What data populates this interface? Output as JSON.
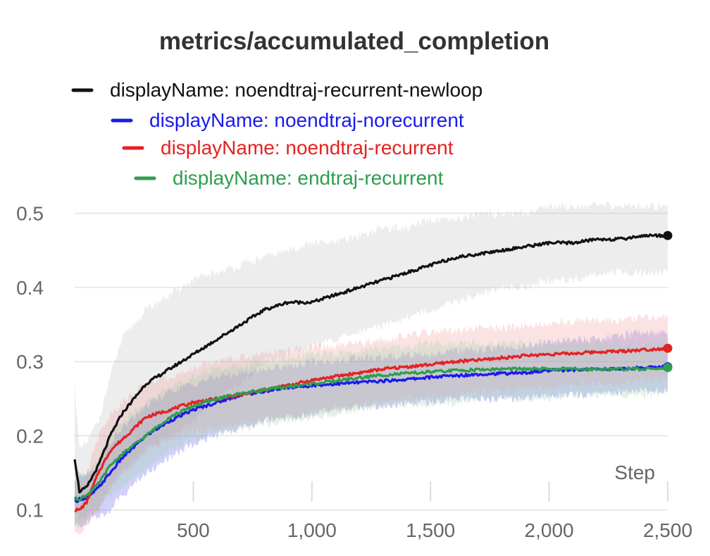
{
  "chart_data": {
    "type": "line",
    "title": "metrics/accumulated_completion",
    "xlabel": "Step",
    "ylabel": "",
    "xlim": [
      0,
      2500
    ],
    "ylim": [
      0.075,
      0.55
    ],
    "x_ticks": [
      500,
      1000,
      1500,
      2000,
      2500
    ],
    "x_tick_labels": [
      "500",
      "1,000",
      "1,500",
      "2,000",
      "2,500"
    ],
    "y_ticks": [
      0.1,
      0.2,
      0.3,
      0.4,
      0.5
    ],
    "y_tick_labels": [
      "0.1",
      "0.2",
      "0.3",
      "0.4",
      "0.5"
    ],
    "grid": true,
    "legend_position": "top",
    "series": [
      {
        "name": "displayName: noendtraj-recurrent-newloop",
        "color": "#111111",
        "band_color": "#bdbdbd",
        "x": [
          0,
          20,
          50,
          100,
          150,
          200,
          300,
          400,
          500,
          600,
          700,
          800,
          900,
          1000,
          1100,
          1200,
          1300,
          1400,
          1500,
          1600,
          1700,
          1800,
          1900,
          2000,
          2100,
          2200,
          2300,
          2400,
          2500
        ],
        "y": [
          0.17,
          0.125,
          0.13,
          0.16,
          0.2,
          0.23,
          0.27,
          0.29,
          0.31,
          0.33,
          0.35,
          0.37,
          0.38,
          0.38,
          0.39,
          0.4,
          0.41,
          0.42,
          0.43,
          0.44,
          0.445,
          0.45,
          0.455,
          0.46,
          0.46,
          0.465,
          0.465,
          0.47,
          0.47
        ],
        "lower": [
          0.1,
          0.09,
          0.09,
          0.1,
          0.13,
          0.15,
          0.18,
          0.2,
          0.22,
          0.25,
          0.27,
          0.3,
          0.31,
          0.32,
          0.33,
          0.34,
          0.35,
          0.36,
          0.37,
          0.38,
          0.39,
          0.4,
          0.4,
          0.41,
          0.41,
          0.42,
          0.42,
          0.42,
          0.42
        ],
        "upper": [
          0.27,
          0.18,
          0.19,
          0.22,
          0.28,
          0.33,
          0.37,
          0.39,
          0.41,
          0.42,
          0.43,
          0.44,
          0.45,
          0.46,
          0.46,
          0.47,
          0.48,
          0.48,
          0.49,
          0.49,
          0.5,
          0.5,
          0.5,
          0.51,
          0.51,
          0.51,
          0.51,
          0.51,
          0.51
        ]
      },
      {
        "name": "displayName: noendtraj-norecurrent",
        "color": "#1a1aee",
        "band_color": "#5a5aee",
        "x": [
          0,
          20,
          50,
          100,
          150,
          200,
          300,
          400,
          500,
          600,
          700,
          800,
          900,
          1000,
          1100,
          1200,
          1300,
          1400,
          1500,
          1600,
          1700,
          1800,
          1900,
          2000,
          2100,
          2200,
          2300,
          2400,
          2500
        ],
        "y": [
          0.11,
          0.115,
          0.115,
          0.13,
          0.15,
          0.17,
          0.2,
          0.22,
          0.235,
          0.245,
          0.255,
          0.26,
          0.265,
          0.268,
          0.27,
          0.272,
          0.274,
          0.276,
          0.279,
          0.281,
          0.283,
          0.284,
          0.285,
          0.288,
          0.289,
          0.29,
          0.29,
          0.292,
          0.293
        ],
        "lower": [
          0.08,
          0.08,
          0.085,
          0.09,
          0.1,
          0.12,
          0.15,
          0.17,
          0.19,
          0.2,
          0.21,
          0.22,
          0.225,
          0.23,
          0.235,
          0.24,
          0.24,
          0.245,
          0.245,
          0.25,
          0.25,
          0.25,
          0.25,
          0.255,
          0.255,
          0.255,
          0.26,
          0.26,
          0.26
        ],
        "upper": [
          0.14,
          0.15,
          0.15,
          0.16,
          0.19,
          0.21,
          0.24,
          0.26,
          0.27,
          0.28,
          0.285,
          0.29,
          0.295,
          0.3,
          0.3,
          0.305,
          0.305,
          0.31,
          0.31,
          0.315,
          0.315,
          0.32,
          0.32,
          0.325,
          0.33,
          0.33,
          0.335,
          0.34,
          0.34
        ]
      },
      {
        "name": "displayName: noendtraj-recurrent",
        "color": "#e52222",
        "band_color": "#f09999",
        "x": [
          0,
          20,
          50,
          100,
          150,
          200,
          300,
          400,
          500,
          600,
          700,
          800,
          900,
          1000,
          1100,
          1200,
          1300,
          1400,
          1500,
          1600,
          1700,
          1800,
          1900,
          2000,
          2100,
          2200,
          2300,
          2400,
          2500
        ],
        "y": [
          0.1,
          0.1,
          0.11,
          0.15,
          0.18,
          0.195,
          0.225,
          0.235,
          0.245,
          0.25,
          0.255,
          0.262,
          0.268,
          0.275,
          0.28,
          0.285,
          0.29,
          0.293,
          0.296,
          0.3,
          0.302,
          0.305,
          0.308,
          0.31,
          0.311,
          0.313,
          0.314,
          0.316,
          0.318
        ],
        "lower": [
          0.07,
          0.07,
          0.08,
          0.1,
          0.13,
          0.15,
          0.18,
          0.195,
          0.205,
          0.21,
          0.215,
          0.22,
          0.225,
          0.23,
          0.235,
          0.24,
          0.245,
          0.25,
          0.25,
          0.255,
          0.26,
          0.26,
          0.265,
          0.265,
          0.27,
          0.27,
          0.27,
          0.275,
          0.275
        ],
        "upper": [
          0.14,
          0.14,
          0.15,
          0.2,
          0.23,
          0.245,
          0.27,
          0.28,
          0.29,
          0.3,
          0.305,
          0.31,
          0.315,
          0.32,
          0.32,
          0.325,
          0.33,
          0.335,
          0.34,
          0.34,
          0.345,
          0.345,
          0.35,
          0.35,
          0.355,
          0.355,
          0.355,
          0.36,
          0.36
        ]
      },
      {
        "name": "displayName: endtraj-recurrent",
        "color": "#2e9e4f",
        "band_color": "#9acfa7",
        "x": [
          0,
          20,
          50,
          100,
          150,
          200,
          300,
          400,
          500,
          600,
          700,
          800,
          900,
          1000,
          1100,
          1200,
          1300,
          1400,
          1500,
          1600,
          1700,
          1800,
          1900,
          2000,
          2100,
          2200,
          2300,
          2400,
          2500
        ],
        "y": [
          0.115,
          0.115,
          0.12,
          0.135,
          0.16,
          0.175,
          0.2,
          0.225,
          0.24,
          0.25,
          0.257,
          0.262,
          0.266,
          0.27,
          0.274,
          0.278,
          0.282,
          0.284,
          0.286,
          0.288,
          0.289,
          0.29,
          0.29,
          0.29,
          0.29,
          0.29,
          0.29,
          0.29,
          0.292
        ],
        "lower": [
          0.08,
          0.08,
          0.09,
          0.1,
          0.12,
          0.13,
          0.155,
          0.18,
          0.195,
          0.205,
          0.21,
          0.215,
          0.22,
          0.225,
          0.23,
          0.235,
          0.24,
          0.24,
          0.245,
          0.245,
          0.25,
          0.25,
          0.25,
          0.25,
          0.255,
          0.255,
          0.255,
          0.255,
          0.26
        ],
        "upper": [
          0.15,
          0.15,
          0.15,
          0.17,
          0.2,
          0.22,
          0.245,
          0.265,
          0.28,
          0.29,
          0.295,
          0.3,
          0.305,
          0.31,
          0.31,
          0.315,
          0.32,
          0.32,
          0.325,
          0.325,
          0.325,
          0.325,
          0.325,
          0.325,
          0.325,
          0.325,
          0.325,
          0.325,
          0.325
        ]
      }
    ]
  }
}
